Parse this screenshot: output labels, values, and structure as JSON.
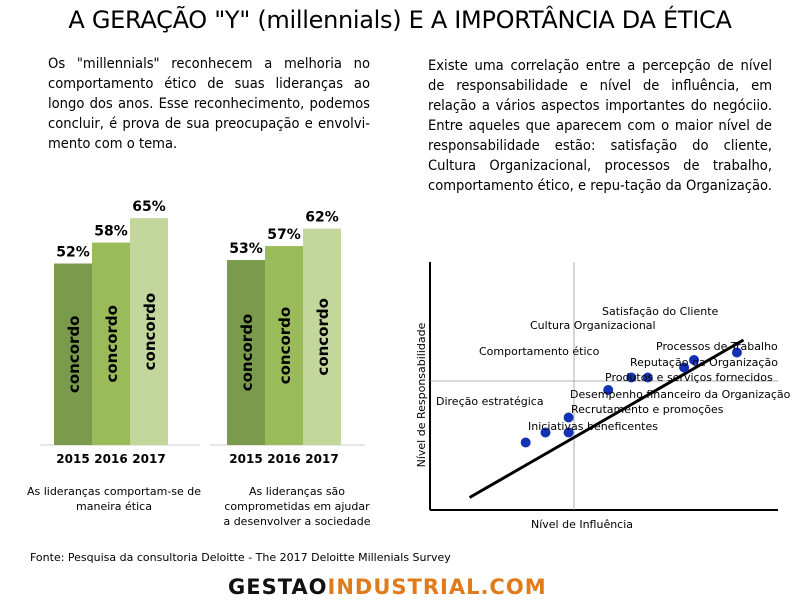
{
  "title": "A GERAÇÃO \"Y\" (millennials) E A IMPORTÂNCIA DA ÉTICA",
  "left_paragraph": "Os \"millennials\" reconhecem a melhoria no comportamento ético de suas lideranças ao longo dos anos. Esse reconhecimento, podemos concluir, é prova de sua preocupação e envolvi-mento com o tema.",
  "right_paragraph": "Existe uma correlação entre a percepção de nível de responsabilidade e nível de influência, em relação a vários aspectos importantes do negóciio. Entre aqueles que aparecem com o maior nível de responsabilidade estão: satisfação do cliente, Cultura Organizacional, processos de trabalho, comportamento ético, e repu-tação da Organização.",
  "source": "Fonte: Pesquisa da consultoria Deloitte - The 2017 Deloitte Millenials Survey",
  "brand": {
    "part1": "GESTAO",
    "part2": "INDUSTRIAL.COM"
  },
  "colors": {
    "dark_green": "#7a9b4b",
    "mid_green": "#9abb59",
    "light_green": "#c3d69b",
    "dot": "#1432b4",
    "brand_orange": "#e07a1a"
  },
  "chart_data": [
    {
      "type": "bar",
      "categories": [
        "2015",
        "2016",
        "2017"
      ],
      "values": [
        52,
        58,
        65
      ],
      "value_labels": [
        "52%",
        "58%",
        "65%"
      ],
      "bar_label": "concordo",
      "caption": "As lideranças comportam-se de maneira ética"
    },
    {
      "type": "bar",
      "categories": [
        "2015",
        "2016",
        "2017"
      ],
      "values": [
        53,
        57,
        62
      ],
      "value_labels": [
        "53%",
        "57%",
        "62%"
      ],
      "bar_label": "concordo",
      "caption": "As lideranças são comprometidas em ajudar a desenvolver a sociedade"
    },
    {
      "type": "scatter",
      "xlabel": "Nível de Influência",
      "ylabel": "Nível de Responsabilidade",
      "xlim": [
        0,
        100
      ],
      "ylim": [
        0,
        100
      ],
      "trend_line": [
        [
          12,
          5
        ],
        [
          95,
          68
        ]
      ],
      "points": [
        {
          "label": "Satisfação do Cliente",
          "x": 93,
          "y": 63
        },
        {
          "label": "Cultura Organizacional",
          "x": 80,
          "y": 60
        },
        {
          "label": "Processos de Trabalho",
          "x": 77,
          "y": 57
        },
        {
          "label": "Comportamento ético",
          "x": 61,
          "y": 53
        },
        {
          "label": "Reputação da Organização",
          "x": 66,
          "y": 53
        },
        {
          "label": "Produtos e serviços fornecidos",
          "x": 54,
          "y": 48
        },
        {
          "label": "Desempenho financeiro da Organização",
          "x": 42,
          "y": 37
        },
        {
          "label": "Direção estratégica",
          "x": 35,
          "y": 31
        },
        {
          "label": "Recrutamento e promoções",
          "x": 42,
          "y": 31
        },
        {
          "label": "Iniciativas beneficentes",
          "x": 29,
          "y": 27
        }
      ]
    }
  ]
}
